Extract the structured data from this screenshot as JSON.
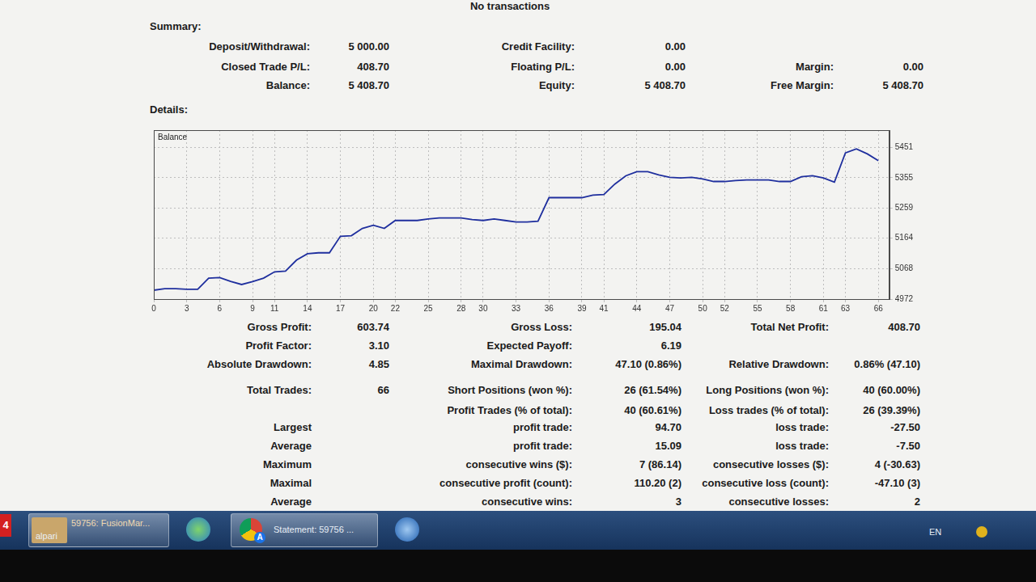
{
  "header": {
    "note": "No transactions"
  },
  "summary": {
    "title": "Summary:",
    "rows": [
      [
        {
          "label": "Deposit/Withdrawal:",
          "value": "5 000.00"
        },
        {
          "label": "Credit Facility:",
          "value": "0.00"
        },
        null
      ],
      [
        {
          "label": "Closed Trade P/L:",
          "value": "408.70"
        },
        {
          "label": "Floating P/L:",
          "value": "0.00"
        },
        {
          "label": "Margin:",
          "value": "0.00"
        }
      ],
      [
        {
          "label": "Balance:",
          "value": "5 408.70"
        },
        {
          "label": "Equity:",
          "value": "5 408.70"
        },
        {
          "label": "Free Margin:",
          "value": "5 408.70"
        }
      ]
    ]
  },
  "details": {
    "title": "Details:"
  },
  "chart_data": {
    "type": "line",
    "title": "Balance",
    "x": [
      0,
      1,
      2,
      3,
      4,
      5,
      6,
      7,
      8,
      9,
      10,
      11,
      12,
      13,
      14,
      15,
      16,
      17,
      18,
      19,
      20,
      21,
      22,
      23,
      24,
      25,
      26,
      27,
      28,
      29,
      30,
      31,
      32,
      33,
      34,
      35,
      36,
      37,
      38,
      39,
      40,
      41,
      42,
      43,
      44,
      45,
      46,
      47,
      48,
      49,
      50,
      51,
      52,
      53,
      54,
      55,
      56,
      57,
      58,
      59,
      60,
      61,
      62,
      63,
      64,
      65,
      66
    ],
    "values": [
      5000,
      5005,
      5005,
      5003,
      5003,
      5038,
      5040,
      5028,
      5018,
      5027,
      5038,
      5058,
      5060,
      5095,
      5115,
      5118,
      5118,
      5170,
      5172,
      5195,
      5205,
      5195,
      5220,
      5220,
      5220,
      5225,
      5228,
      5228,
      5228,
      5223,
      5220,
      5225,
      5220,
      5215,
      5215,
      5218,
      5292,
      5292,
      5292,
      5292,
      5300,
      5302,
      5335,
      5361,
      5374,
      5374,
      5364,
      5356,
      5354,
      5356,
      5351,
      5343,
      5343,
      5346,
      5348,
      5348,
      5348,
      5343,
      5343,
      5358,
      5361,
      5354,
      5341,
      5433,
      5446,
      5430,
      5408.7
    ],
    "color": "#1f2f9e",
    "xlim": [
      0,
      67
    ],
    "xticks": [
      0,
      3,
      6,
      9,
      11,
      14,
      17,
      20,
      22,
      25,
      28,
      30,
      33,
      36,
      39,
      41,
      44,
      47,
      50,
      52,
      55,
      58,
      61,
      63,
      66
    ],
    "ylim": [
      4972,
      5505
    ],
    "yticks": [
      4972,
      5068,
      5164,
      5259,
      5355,
      5451
    ],
    "grid": true
  },
  "statistics": {
    "rows": [
      [
        {
          "label": "Gross Profit:",
          "value": "603.74"
        },
        {
          "label": "Gross Loss:",
          "value": "195.04"
        },
        {
          "label": "Total Net Profit:",
          "value": "408.70"
        }
      ],
      [
        {
          "label": "Profit Factor:",
          "value": "3.10"
        },
        {
          "label": "Expected Payoff:",
          "value": "6.19"
        },
        null
      ],
      [
        {
          "label": "Absolute Drawdown:",
          "value": "4.85"
        },
        {
          "label": "Maximal Drawdown:",
          "value": "47.10 (0.86%)"
        },
        {
          "label": "Relative Drawdown:",
          "value": "0.86% (47.10)"
        }
      ],
      [
        {
          "label": "Total Trades:",
          "value": "66"
        },
        {
          "label": "Short Positions (won %):",
          "value": "26 (61.54%)"
        },
        {
          "label": "Long Positions (won %):",
          "value": "40 (60.00%)"
        }
      ],
      [
        null,
        {
          "label": "Profit Trades (% of total):",
          "value": "40 (60.61%)"
        },
        {
          "label": "Loss trades (% of total):",
          "value": "26 (39.39%)"
        }
      ],
      [
        {
          "label": "Largest"
        },
        {
          "label": "profit trade:",
          "value": "94.70"
        },
        {
          "label": "loss trade:",
          "value": "-27.50"
        }
      ],
      [
        {
          "label": "Average"
        },
        {
          "label": "profit trade:",
          "value": "15.09"
        },
        {
          "label": "loss trade:",
          "value": "-7.50"
        }
      ],
      [
        {
          "label": "Maximum"
        },
        {
          "label": "consecutive wins ($):",
          "value": "7 (86.14)"
        },
        {
          "label": "consecutive losses ($):",
          "value": "4 (-30.63)"
        }
      ],
      [
        {
          "label": "Maximal"
        },
        {
          "label": "consecutive profit (count):",
          "value": "110.20 (2)"
        },
        {
          "label": "consecutive loss (count):",
          "value": "-47.10 (3)"
        }
      ],
      [
        {
          "label": "Average"
        },
        {
          "label": "consecutive wins:",
          "value": "3"
        },
        {
          "label": "consecutive losses:",
          "value": "2"
        }
      ]
    ]
  },
  "taskbar": {
    "badge": "4",
    "buttons": [
      {
        "label": "alpari",
        "title": "59756: FusionMar..."
      },
      {
        "badge": "A",
        "title": "Statement: 59756 ..."
      }
    ],
    "language": "EN"
  }
}
